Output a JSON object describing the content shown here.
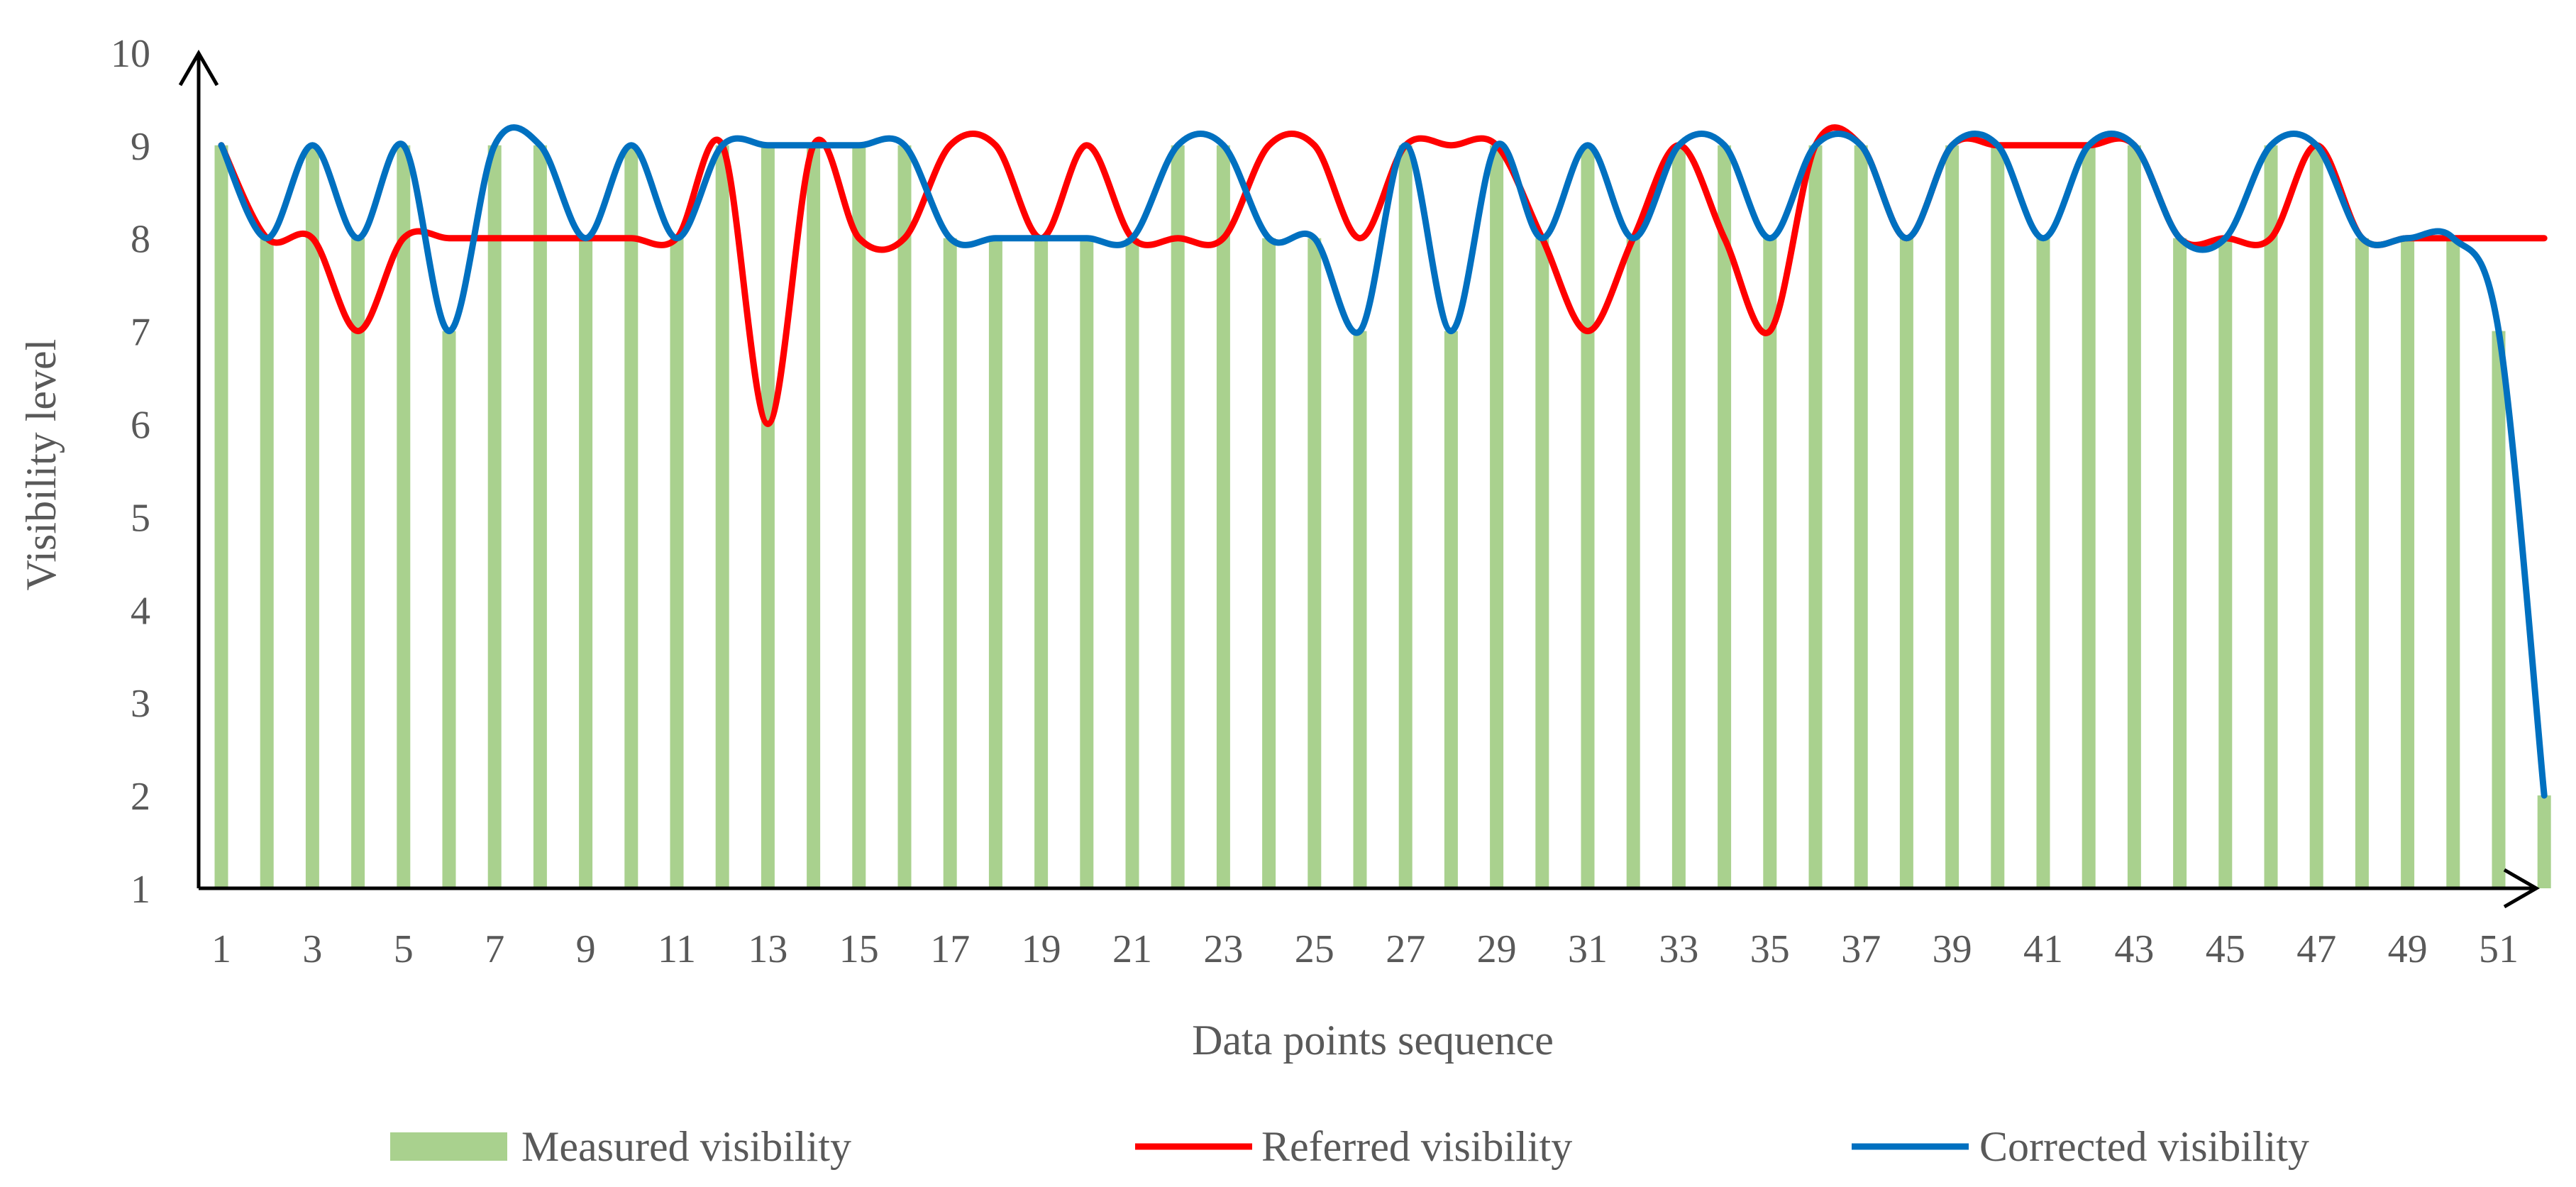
{
  "chart_data": {
    "type": "bar",
    "title": "",
    "xlabel": "Data points sequence",
    "ylabel": "Visibility level",
    "ylim": [
      1,
      10
    ],
    "yticks": [
      "1",
      "2",
      "3",
      "4",
      "5",
      "6",
      "7",
      "8",
      "9",
      "10"
    ],
    "xlim": [
      1,
      52
    ],
    "xtick_labels": [
      "1",
      "3",
      "5",
      "7",
      "9",
      "11",
      "13",
      "15",
      "17",
      "19",
      "21",
      "23",
      "25",
      "27",
      "29",
      "31",
      "33",
      "35",
      "37",
      "39",
      "41",
      "43",
      "45",
      "47",
      "49",
      "51"
    ],
    "x": [
      1,
      2,
      3,
      4,
      5,
      6,
      7,
      8,
      9,
      10,
      11,
      12,
      13,
      14,
      15,
      16,
      17,
      18,
      19,
      20,
      21,
      22,
      23,
      24,
      25,
      26,
      27,
      28,
      29,
      30,
      31,
      32,
      33,
      34,
      35,
      36,
      37,
      38,
      39,
      40,
      41,
      42,
      43,
      44,
      45,
      46,
      47,
      48,
      49,
      50,
      51,
      52
    ],
    "series": [
      {
        "name": "Measured visibility",
        "kind": "bar",
        "color": "#a9d18e",
        "values": [
          9,
          8,
          9,
          8,
          9,
          7,
          9,
          9,
          8,
          9,
          8,
          9,
          9,
          9,
          9,
          9,
          8,
          8,
          8,
          8,
          8,
          9,
          9,
          8,
          8,
          7,
          9,
          7,
          9,
          8,
          9,
          8,
          9,
          9,
          8,
          9,
          9,
          8,
          9,
          9,
          8,
          9,
          9,
          8,
          8,
          9,
          9,
          8,
          8,
          8,
          7,
          2
        ]
      },
      {
        "name": "Referred visibility",
        "kind": "line",
        "color": "#ff0000",
        "values": [
          9,
          8,
          8,
          7,
          8,
          8,
          8,
          8,
          8,
          8,
          8,
          9,
          6,
          9,
          8,
          8,
          9,
          9,
          8,
          9,
          8,
          8,
          8,
          9,
          9,
          8,
          9,
          9,
          9,
          8,
          7,
          8,
          9,
          8,
          7,
          9,
          9,
          8,
          9,
          9,
          9,
          9,
          9,
          8,
          8,
          8,
          9,
          8,
          8,
          8,
          8,
          8
        ]
      },
      {
        "name": "Corrected visibility",
        "kind": "line",
        "color": "#0070c0",
        "values": [
          9,
          8,
          9,
          8,
          9,
          7,
          9,
          9,
          8,
          9,
          8,
          9,
          9,
          9,
          9,
          9,
          8,
          8,
          8,
          8,
          8,
          9,
          9,
          8,
          8,
          7,
          9,
          7,
          9,
          8,
          9,
          8,
          9,
          9,
          8,
          9,
          9,
          8,
          9,
          9,
          8,
          9,
          9,
          8,
          8,
          9,
          9,
          8,
          8,
          8,
          7,
          2
        ]
      }
    ],
    "legend_position": "bottom"
  }
}
